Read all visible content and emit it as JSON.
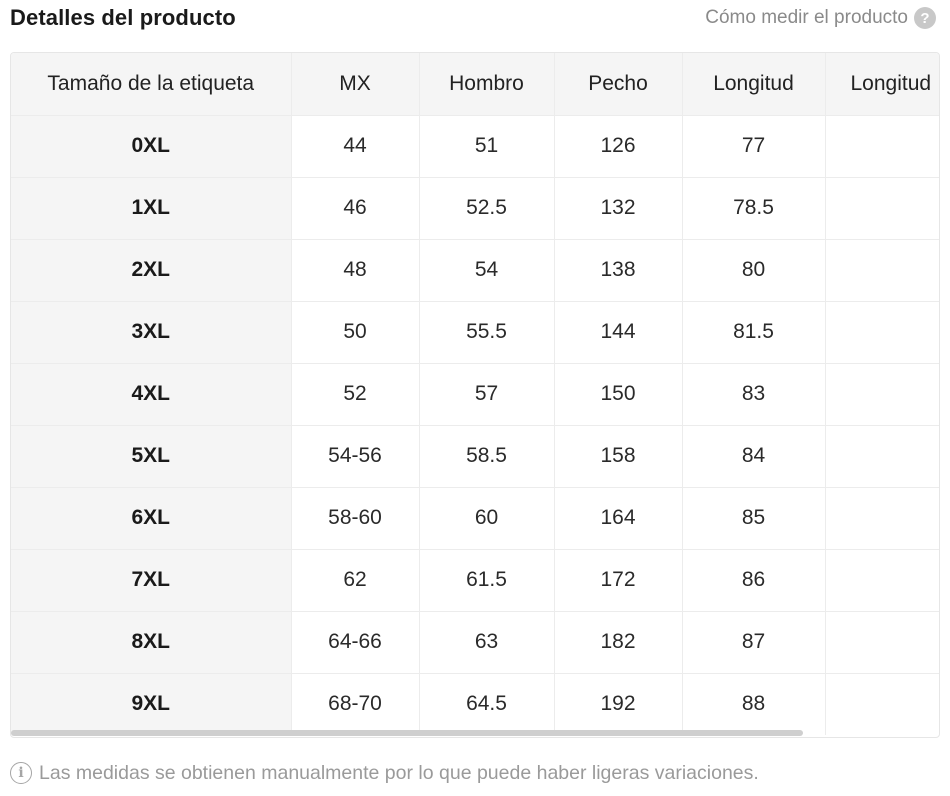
{
  "header": {
    "title": "Detalles del producto",
    "how_to_measure_label": "Cómo medir el producto",
    "help_icon": "question-circle-icon",
    "help_icon_glyph": "?"
  },
  "table": {
    "columns": [
      "Tamaño de la etiqueta",
      "MX",
      "Hombro",
      "Pecho",
      "Longitud",
      "Longitud"
    ],
    "rows": [
      [
        "0XL",
        "44",
        "51",
        "126",
        "77",
        ""
      ],
      [
        "1XL",
        "46",
        "52.5",
        "132",
        "78.5",
        ""
      ],
      [
        "2XL",
        "48",
        "54",
        "138",
        "80",
        ""
      ],
      [
        "3XL",
        "50",
        "55.5",
        "144",
        "81.5",
        ""
      ],
      [
        "4XL",
        "52",
        "57",
        "150",
        "83",
        ""
      ],
      [
        "5XL",
        "54-56",
        "58.5",
        "158",
        "84",
        ""
      ],
      [
        "6XL",
        "58-60",
        "60",
        "164",
        "85",
        ""
      ],
      [
        "7XL",
        "62",
        "61.5",
        "172",
        "86",
        ""
      ],
      [
        "8XL",
        "64-66",
        "63",
        "182",
        "87",
        ""
      ],
      [
        "9XL",
        "68-70",
        "64.5",
        "192",
        "88",
        ""
      ]
    ]
  },
  "footer": {
    "note": "Las medidas se obtienen manualmente por lo que puede haber ligeras variaciones.",
    "info_icon": "info-circle-icon",
    "info_icon_glyph": "i"
  },
  "colors": {
    "header_bg": "#f5f5f5",
    "border": "#ececec",
    "muted_text": "#8a8a8a"
  }
}
